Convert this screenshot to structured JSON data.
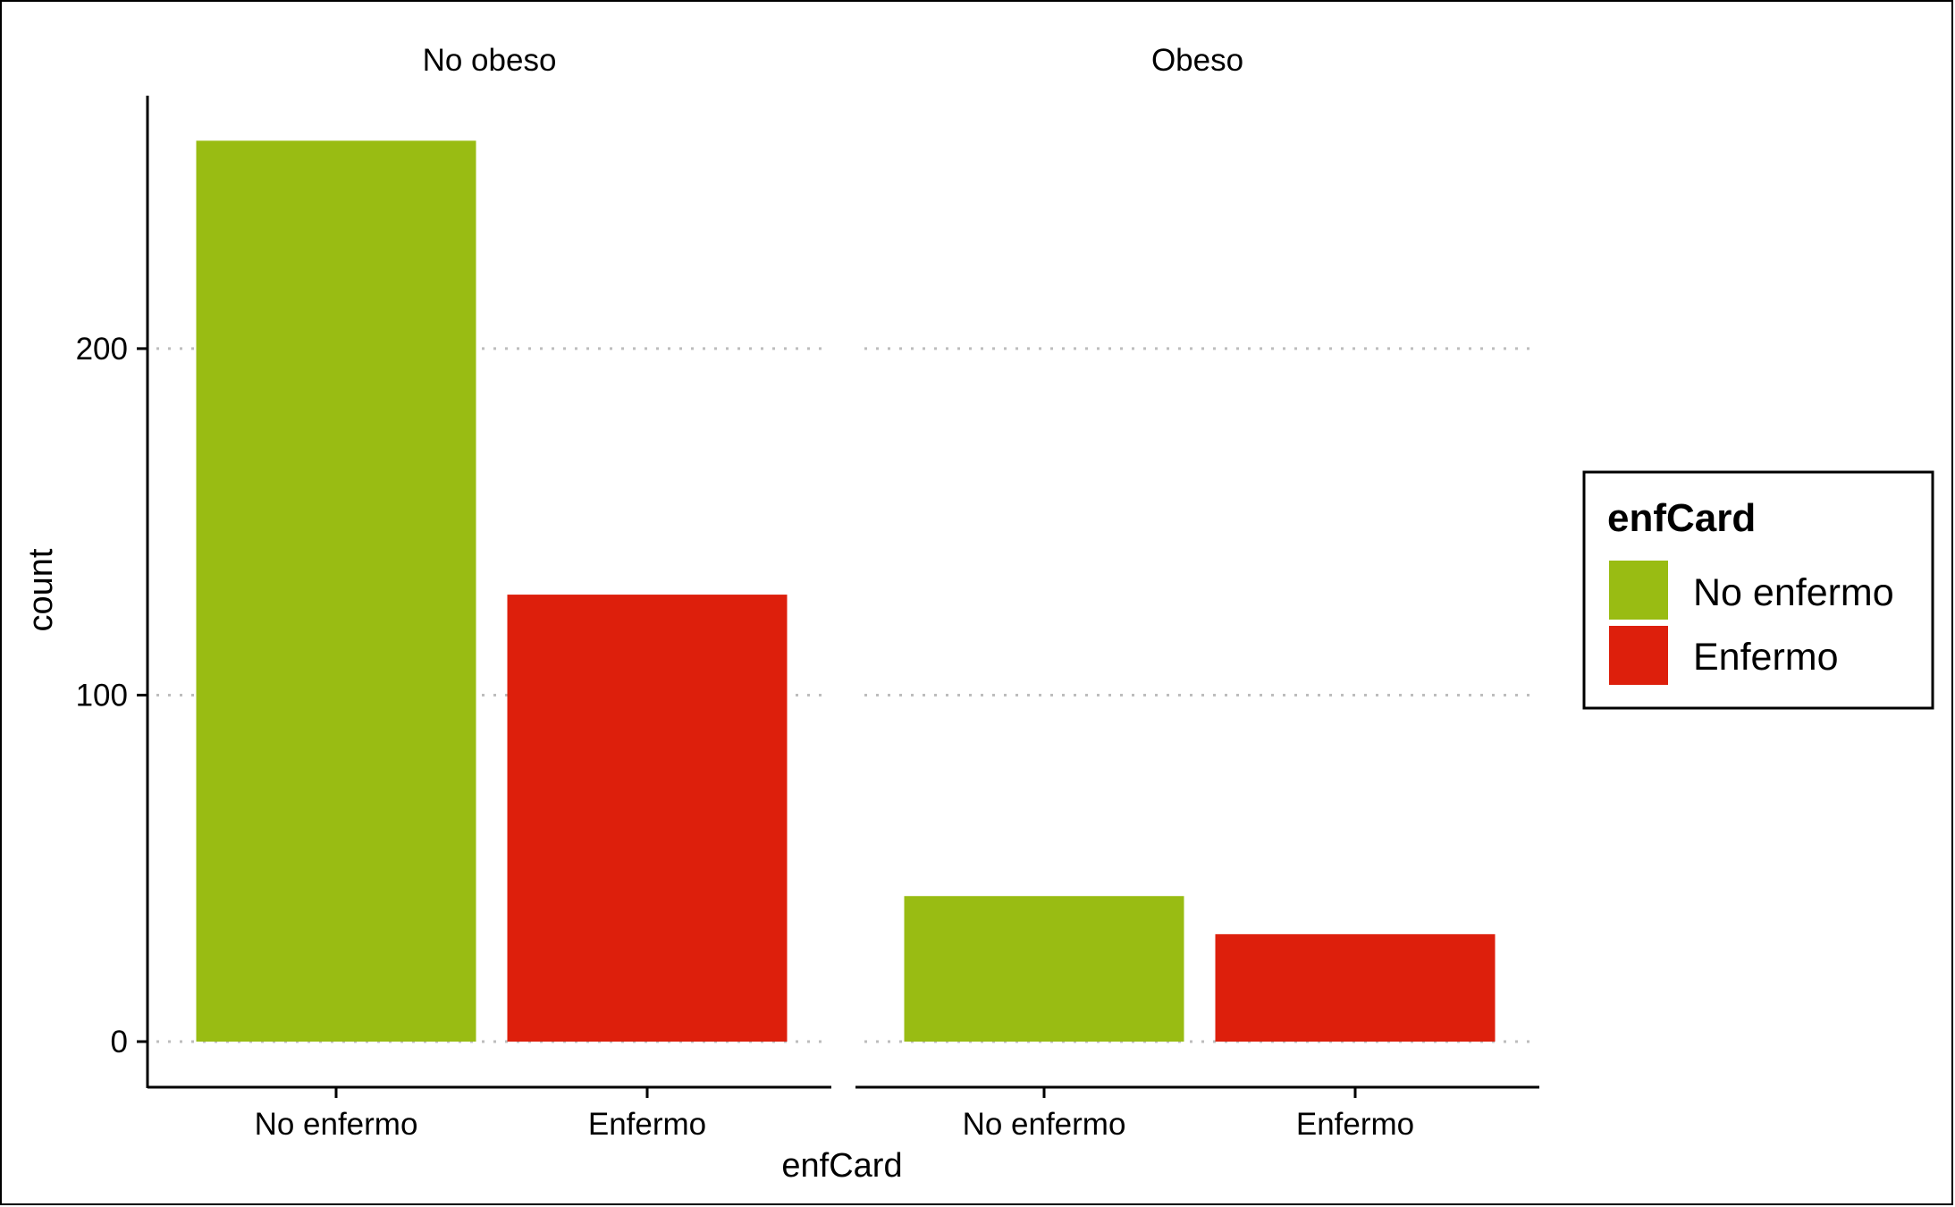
{
  "chart_data": {
    "type": "bar",
    "facets": [
      "No obeso",
      "Obeso"
    ],
    "categories": [
      "No enfermo",
      "Enfermo"
    ],
    "series": [
      {
        "name": "No enfermo",
        "color": "#99BC13",
        "values": [
          260,
          42
        ]
      },
      {
        "name": "Enfermo",
        "color": "#DD1F0C",
        "values": [
          129,
          31
        ]
      }
    ],
    "xlabel": "enfCard",
    "ylabel": "count",
    "ylim": [
      0,
      273
    ],
    "yticks": [
      0,
      100,
      200
    ],
    "grid": "horizontal-dotted",
    "legend": {
      "title": "enfCard",
      "position": "right",
      "items": [
        {
          "label": "No enfermo",
          "color": "#99BC13"
        },
        {
          "label": "Enfermo",
          "color": "#DD1F0C"
        }
      ]
    }
  }
}
